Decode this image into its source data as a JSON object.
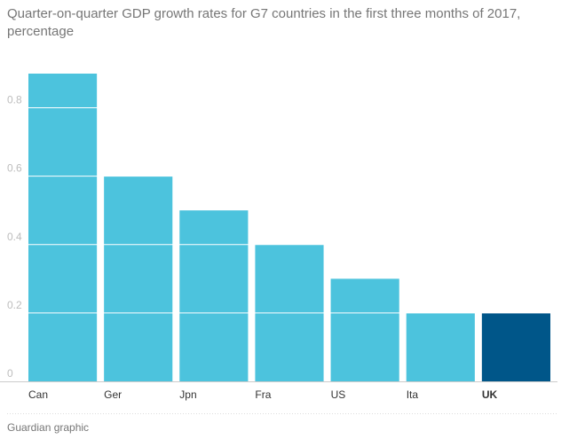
{
  "title": "Quarter-on-quarter GDP growth rates for G7 countries in the first three months of 2017, percentage",
  "source": "Guardian graphic",
  "chart_data": {
    "type": "bar",
    "title": "Quarter-on-quarter GDP growth rates for G7 countries in the first three months of 2017, percentage",
    "categories": [
      "Can",
      "Ger",
      "Jpn",
      "Fra",
      "US",
      "Ita",
      "UK"
    ],
    "values": [
      0.9,
      0.6,
      0.5,
      0.4,
      0.3,
      0.2,
      0.2
    ],
    "highlight": "UK",
    "ylim": [
      0,
      0.9
    ],
    "yticks": [
      0,
      0.2,
      0.4,
      0.6,
      0.8
    ],
    "ytick_labels": [
      "0",
      "0.2",
      "0.4",
      "0.6",
      "0.8"
    ],
    "grid": true,
    "colors": {
      "bar": "#4cc3dd",
      "highlight": "#005689",
      "axis": "#cccccc",
      "gridline": "#ffffff"
    }
  }
}
